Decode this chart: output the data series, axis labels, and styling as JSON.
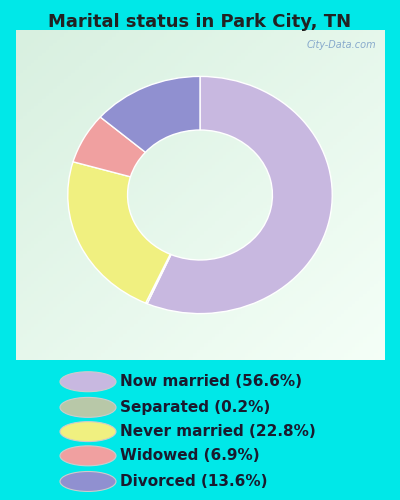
{
  "title": "Marital status in Park City, TN",
  "slices": [
    {
      "label": "Now married (56.6%)",
      "value": 56.6,
      "color": "#c8b8e0"
    },
    {
      "label": "Separated (0.2%)",
      "value": 0.2,
      "color": "#b8c8a8"
    },
    {
      "label": "Never married (22.8%)",
      "value": 22.8,
      "color": "#f0f080"
    },
    {
      "label": "Widowed (6.9%)",
      "value": 6.9,
      "color": "#f0a0a0"
    },
    {
      "label": "Divorced (13.6%)",
      "value": 13.6,
      "color": "#9090d0"
    }
  ],
  "bg_outer": "#00e8e8",
  "bg_chart_color1": "#d8f0e0",
  "bg_chart_color2": "#f0faf5",
  "title_fontsize": 13,
  "legend_fontsize": 11,
  "watermark": "City-Data.com",
  "title_color": "#222222",
  "legend_text_color": "#1a1a2e"
}
